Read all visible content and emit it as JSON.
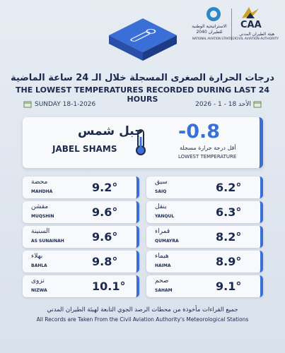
{
  "header": {
    "caa_logo": "CAA",
    "caa_ar": "هيئة الطيران المدني",
    "caa_en": "CIVIL AVIATION AUTHORITY",
    "strategy_ar": "الاستراتيجية الوطنية للطيران 2040",
    "strategy_en": "NATIONAL AVIATION STRATEGY"
  },
  "title_ar": "درجات الحرارة الصغرى المسجلة خلال الـ 24 ساعة الماضية",
  "title_en": "THE LOWEST TEMPERATURES RECORDED DURING LAST 24 HOURS",
  "date_en": "SUNDAY 18-1-2026",
  "date_ar": "الأحد 18 - 1 - 2026",
  "lowest": {
    "value": "-0.8",
    "label_ar": "أقل درجة حرارة مسجلة",
    "label_en": "LOWEST TEMPERATURE",
    "station_ar": "جبل شمس",
    "station_en": "JABEL SHAMS"
  },
  "left_stations": [
    {
      "ar": "محضة",
      "en": "MAHDHA",
      "value": "9.2°"
    },
    {
      "ar": "مقشن",
      "en": "MUQSHIN",
      "value": "9.6°"
    },
    {
      "ar": "السنينة",
      "en": "AS SUNAINAH",
      "value": "9.6°"
    },
    {
      "ar": "بهلاء",
      "en": "BAHLA",
      "value": "9.8°"
    },
    {
      "ar": "نزوى",
      "en": "NIZWA",
      "value": "10.1°"
    }
  ],
  "right_stations": [
    {
      "ar": "سيق",
      "en": "SAIQ",
      "value": "6.2°"
    },
    {
      "ar": "ينقل",
      "en": "YANQUL",
      "value": "6.3°"
    },
    {
      "ar": "قمراء",
      "en": "QUMAYRA",
      "value": "8.2°"
    },
    {
      "ar": "هيماء",
      "en": "HAIMA",
      "value": "8.9°"
    },
    {
      "ar": "صحم",
      "en": "SAHAM",
      "value": "9.1°"
    }
  ],
  "footer_ar": "جميع القراءات مأخوذة من محطات الرصد الجوي التابعة لهيئة الطيران المدني",
  "footer_en": "All Records are Taken From the Civil Aviation Authority's Meteorological Stations"
}
